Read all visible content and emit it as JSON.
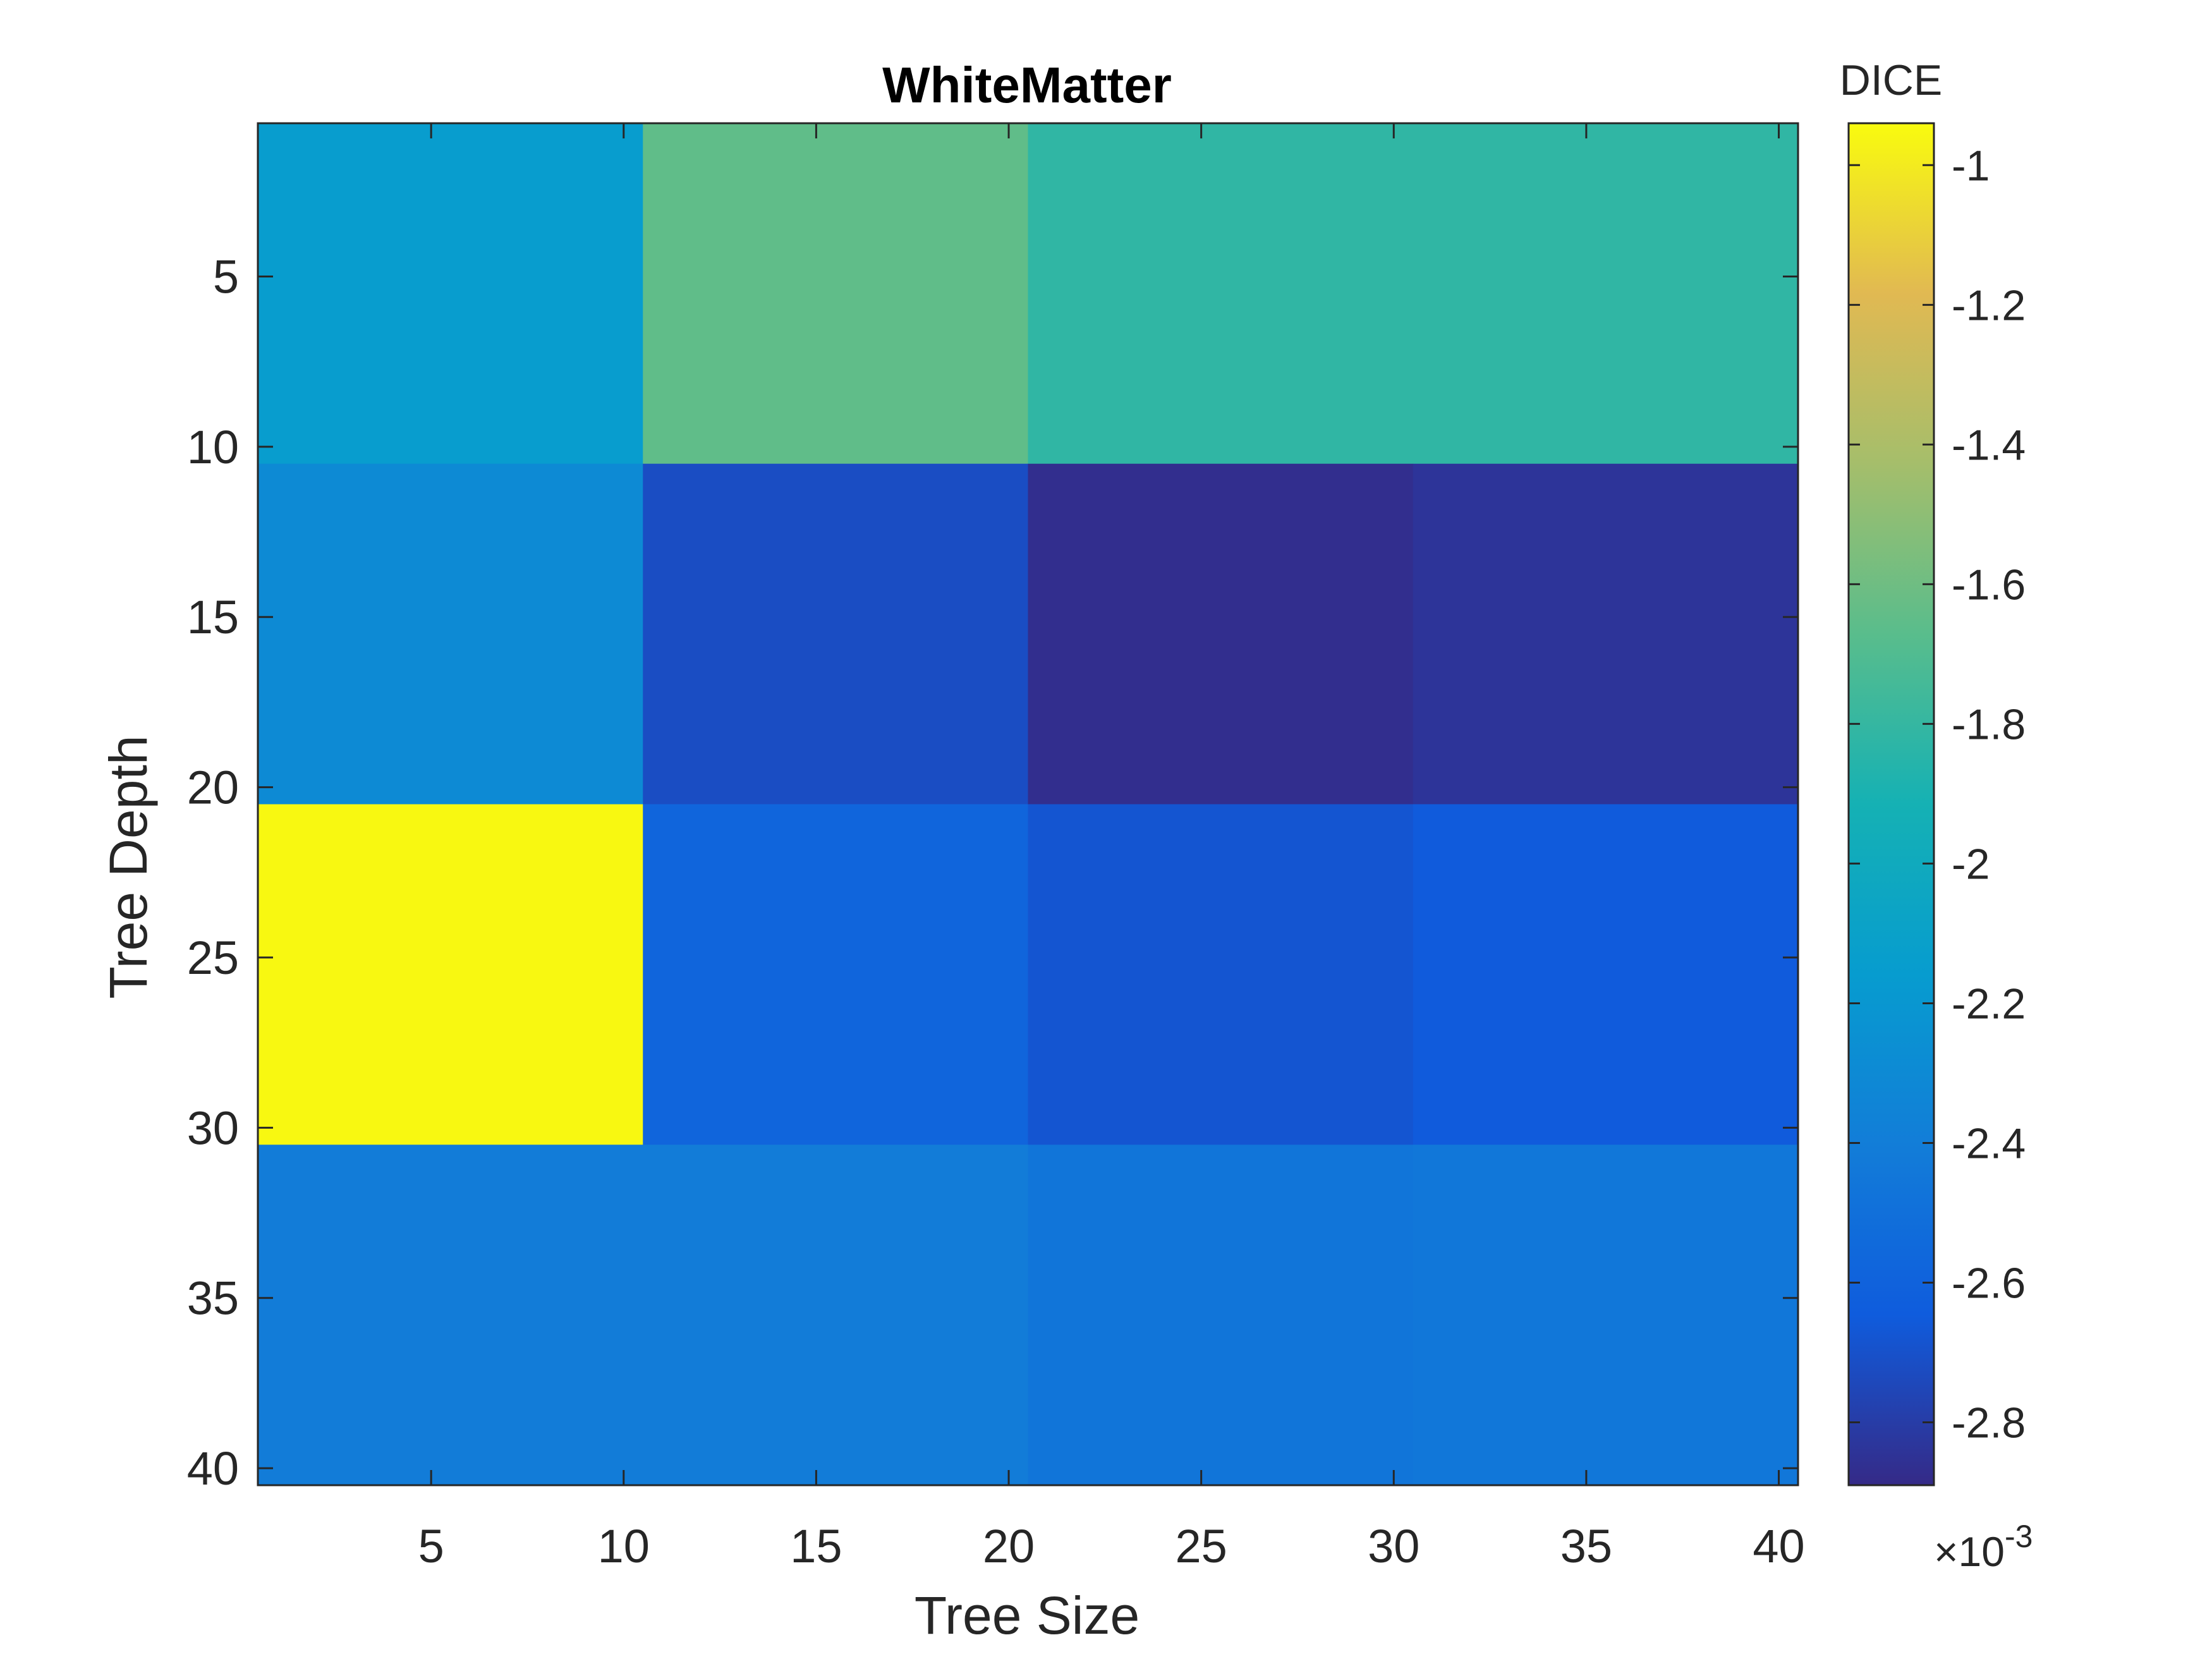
{
  "chart_data": {
    "type": "heatmap",
    "title": "WhiteMatter",
    "xlabel": "Tree Size",
    "ylabel": "Tree Depth",
    "xlim": [
      0.5,
      40.5
    ],
    "ylim": [
      0.5,
      40.5
    ],
    "y_reversed": true,
    "xticks": [
      5,
      10,
      15,
      20,
      25,
      30,
      35,
      40
    ],
    "yticks": [
      5,
      10,
      15,
      20,
      25,
      30,
      35,
      40
    ],
    "x_bins": [
      [
        0.5,
        10.5
      ],
      [
        10.5,
        20.5
      ],
      [
        20.5,
        30.5
      ],
      [
        30.5,
        40.5
      ]
    ],
    "y_bins": [
      [
        0.5,
        10.5
      ],
      [
        10.5,
        20.5
      ],
      [
        20.5,
        30.5
      ],
      [
        30.5,
        40.5
      ]
    ],
    "values": [
      [
        -0.00215,
        -0.00165,
        -0.00182,
        -0.00182
      ],
      [
        -0.0023,
        -0.00272,
        -0.00287,
        -0.00284
      ],
      [
        -0.00095,
        -0.00258,
        -0.00268,
        -0.00265
      ],
      [
        -0.00241,
        -0.00241,
        -0.00246,
        -0.00245
      ]
    ],
    "colorbar": {
      "label": "DICE",
      "clim": [
        -0.00289,
        -0.00094
      ],
      "ticks": [
        -1,
        -1.2,
        -1.4,
        -1.6,
        -1.8,
        -2,
        -2.2,
        -2.4,
        -2.6,
        -2.8
      ],
      "tick_labels": [
        "-1",
        "-1.2",
        "-1.4",
        "-1.6",
        "-1.8",
        "-2",
        "-2.2",
        "-2.4",
        "-2.6",
        "-2.8"
      ],
      "exponent_label": "×10",
      "exponent_power": "-3",
      "scale": 0.001,
      "colormap": "parula"
    },
    "grid": false,
    "legend": "none"
  }
}
